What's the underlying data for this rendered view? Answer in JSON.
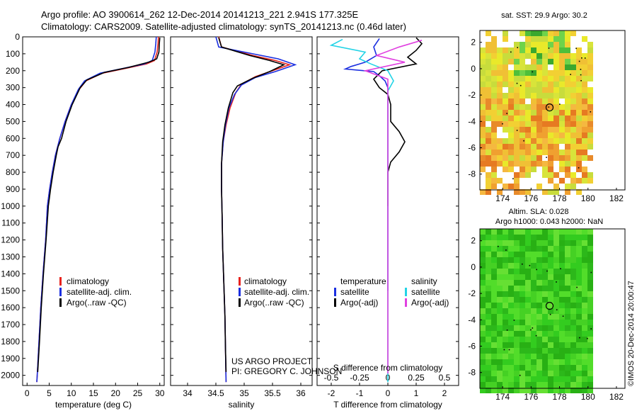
{
  "header": {
    "line1": "Argo profile: AO 3900614_262 12-Dec-2014 20141213_221 2.941S 177.325E",
    "line2": "Climatology: CARS2009. Satellite-adjusted climatology: synTS_20141213.nc (0.46d later)"
  },
  "colors": {
    "climatology": "#e8231e",
    "satellite": "#1b2fe0",
    "argo": "#000000",
    "sat_salinity": "#22d3e6",
    "argo_salinity": "#e040e0"
  },
  "chart_data": [
    {
      "type": "line",
      "name": "temperature-profile",
      "xlabel": "temperature (deg C)",
      "ylabel": "",
      "xlim": [
        -1,
        31
      ],
      "ylim": [
        2060,
        0
      ],
      "xticks": [
        "0",
        "5",
        "10",
        "15",
        "20",
        "25",
        "30"
      ],
      "yticks": [
        "0",
        "100",
        "200",
        "300",
        "400",
        "500",
        "600",
        "700",
        "800",
        "900",
        "1000",
        "1100",
        "1200",
        "1300",
        "1400",
        "1500",
        "1600",
        "1700",
        "1800",
        "1900",
        "2000"
      ],
      "legend": [
        "climatology",
        "satellite-adj. clim.",
        "Argo(..raw -QC)"
      ],
      "series": [
        {
          "name": "climatology",
          "color_key": "climatology",
          "points": [
            [
              29.7,
              0
            ],
            [
              29.6,
              40
            ],
            [
              29.4,
              90
            ],
            [
              28.8,
              140
            ],
            [
              27,
              160
            ],
            [
              22.5,
              185
            ],
            [
              17,
              215
            ],
            [
              13.3,
              260
            ],
            [
              11.8,
              310
            ],
            [
              10,
              400
            ],
            [
              8.6,
              500
            ],
            [
              7.4,
              600
            ],
            [
              6.4,
              700
            ],
            [
              5.7,
              800
            ],
            [
              5.1,
              900
            ],
            [
              4.6,
              1000
            ],
            [
              4.2,
              1200
            ],
            [
              3.6,
              1400
            ],
            [
              3.1,
              1600
            ],
            [
              2.7,
              1800
            ],
            [
              2.3,
              2000
            ],
            [
              2.2,
              2040
            ]
          ]
        },
        {
          "name": "satellite-adj. clim.",
          "color_key": "satellite",
          "points": [
            [
              29.2,
              0
            ],
            [
              29.1,
              40
            ],
            [
              28.9,
              90
            ],
            [
              28.3,
              140
            ],
            [
              26.5,
              160
            ],
            [
              22,
              185
            ],
            [
              16.5,
              215
            ],
            [
              13,
              260
            ],
            [
              11.6,
              310
            ],
            [
              10,
              400
            ],
            [
              8.6,
              500
            ],
            [
              7.4,
              600
            ],
            [
              6.4,
              700
            ],
            [
              5.7,
              800
            ],
            [
              5.1,
              900
            ],
            [
              4.6,
              1000
            ],
            [
              4.2,
              1200
            ],
            [
              3.6,
              1400
            ],
            [
              3.1,
              1600
            ],
            [
              2.7,
              1800
            ],
            [
              2.3,
              2000
            ],
            [
              2.2,
              2040
            ]
          ]
        },
        {
          "name": "Argo(..raw -QC)",
          "color_key": "argo",
          "points": [
            [
              30,
              5
            ],
            [
              29.9,
              40
            ],
            [
              29.8,
              90
            ],
            [
              29.3,
              130
            ],
            [
              27.5,
              150
            ],
            [
              23,
              180
            ],
            [
              17.5,
              210
            ],
            [
              13.5,
              255
            ],
            [
              12,
              300
            ],
            [
              10.2,
              400
            ],
            [
              8.8,
              500
            ],
            [
              7.8,
              600
            ],
            [
              7,
              650
            ],
            [
              6.6,
              700
            ],
            [
              5.9,
              800
            ],
            [
              5.3,
              900
            ],
            [
              4.8,
              1000
            ],
            [
              4.3,
              1200
            ],
            [
              3.7,
              1400
            ],
            [
              3.2,
              1600
            ],
            [
              2.8,
              1800
            ],
            [
              2.4,
              1980
            ]
          ]
        }
      ]
    },
    {
      "type": "line",
      "name": "salinity-profile",
      "xlabel": "salinity",
      "xlim": [
        33.7,
        36.2
      ],
      "ylim": [
        2060,
        0
      ],
      "xticks": [
        "34",
        "34.5",
        "35",
        "35.5",
        "36"
      ],
      "legend": [
        "climatology",
        "satellite-adj. clim.",
        "Argo(..raw -QC)"
      ],
      "series": [
        {
          "name": "climatology",
          "color_key": "climatology",
          "points": [
            [
              34.55,
              0
            ],
            [
              34.6,
              60
            ],
            [
              35.15,
              110
            ],
            [
              35.55,
              140
            ],
            [
              35.8,
              165
            ],
            [
              35.5,
              200
            ],
            [
              35.2,
              235
            ],
            [
              34.95,
              280
            ],
            [
              34.85,
              330
            ],
            [
              34.75,
              420
            ],
            [
              34.68,
              520
            ],
            [
              34.63,
              620
            ],
            [
              34.6,
              750
            ],
            [
              34.6,
              900
            ],
            [
              34.61,
              1050
            ],
            [
              34.62,
              1250
            ],
            [
              34.64,
              1450
            ],
            [
              34.66,
              1650
            ],
            [
              34.67,
              1850
            ],
            [
              34.68,
              2040
            ]
          ]
        },
        {
          "name": "satellite-adj. clim.",
          "color_key": "satellite",
          "points": [
            [
              34.5,
              0
            ],
            [
              34.55,
              60
            ],
            [
              35.15,
              100
            ],
            [
              35.6,
              130
            ],
            [
              35.9,
              165
            ],
            [
              35.55,
              205
            ],
            [
              35.2,
              240
            ],
            [
              34.95,
              285
            ],
            [
              34.83,
              340
            ],
            [
              34.73,
              420
            ],
            [
              34.67,
              520
            ],
            [
              34.63,
              620
            ],
            [
              34.6,
              750
            ],
            [
              34.6,
              900
            ],
            [
              34.61,
              1050
            ],
            [
              34.62,
              1250
            ],
            [
              34.64,
              1450
            ],
            [
              34.66,
              1650
            ],
            [
              34.67,
              1850
            ],
            [
              34.68,
              2040
            ]
          ]
        },
        {
          "name": "Argo(..raw -QC)",
          "color_key": "argo",
          "points": [
            [
              34.55,
              5
            ],
            [
              34.6,
              60
            ],
            [
              35.1,
              110
            ],
            [
              35.45,
              140
            ],
            [
              35.7,
              165
            ],
            [
              35.45,
              205
            ],
            [
              35.15,
              245
            ],
            [
              34.88,
              290
            ],
            [
              34.8,
              330
            ],
            [
              34.72,
              420
            ],
            [
              34.66,
              520
            ],
            [
              34.62,
              620
            ],
            [
              34.6,
              750
            ],
            [
              34.6,
              900
            ],
            [
              34.61,
              1050
            ],
            [
              34.62,
              1250
            ],
            [
              34.64,
              1450
            ],
            [
              34.66,
              1650
            ],
            [
              34.67,
              1850
            ],
            [
              34.68,
              1980
            ]
          ]
        }
      ]
    },
    {
      "type": "line",
      "name": "difference-profile",
      "xlabel": "T difference from climatology",
      "xlabel2": "S difference from climatology",
      "xlim": [
        -2.5,
        2.5
      ],
      "ylim": [
        2060,
        0
      ],
      "xticks": [
        "-2",
        "-1",
        "0",
        "1",
        "2"
      ],
      "xticks_s": [
        "-0.5",
        "-0.25",
        "0",
        "0.25",
        "0.5"
      ],
      "legend": [
        "temperature",
        "satellite",
        "Argo(-adj)",
        "salinity",
        "satellite",
        "Argo(-adj)"
      ],
      "series": [
        {
          "name": "T satellite",
          "color_key": "satellite",
          "points": [
            [
              -0.3,
              10
            ],
            [
              -0.5,
              60
            ],
            [
              -0.4,
              110
            ],
            [
              -0.8,
              150
            ],
            [
              -1.3,
              175
            ],
            [
              -1.5,
              190
            ],
            [
              -0.5,
              205
            ],
            [
              -0.3,
              230
            ],
            [
              -0.1,
              260
            ],
            [
              0,
              300
            ],
            [
              0,
              500
            ],
            [
              0,
              800
            ],
            [
              0,
              1200
            ],
            [
              0,
              1500
            ]
          ]
        },
        {
          "name": "T Argo(-adj)",
          "color_key": "argo",
          "points": [
            [
              1,
              5
            ],
            [
              1.2,
              40
            ],
            [
              1,
              80
            ],
            [
              0.7,
              120
            ],
            [
              1,
              160
            ],
            [
              -0.2,
              200
            ],
            [
              -0.5,
              250
            ],
            [
              -0.3,
              300
            ],
            [
              0,
              340
            ],
            [
              0.1,
              400
            ],
            [
              0.1,
              500
            ],
            [
              0.4,
              560
            ],
            [
              0.6,
              620
            ],
            [
              0.4,
              680
            ],
            [
              0.1,
              740
            ],
            [
              0,
              800
            ],
            [
              0,
              1000
            ]
          ]
        },
        {
          "name": "S satellite",
          "color_key": "sat_salinity",
          "points": [
            [
              -0.4,
              15
            ],
            [
              -0.5,
              50
            ],
            [
              -0.2,
              90
            ],
            [
              -0.25,
              130
            ],
            [
              -0.15,
              160
            ],
            [
              0,
              200
            ],
            [
              0.05,
              260
            ],
            [
              0,
              320
            ],
            [
              0,
              500
            ],
            [
              0,
              800
            ],
            [
              0,
              1200
            ],
            [
              0,
              1600
            ],
            [
              0,
              2040
            ]
          ]
        },
        {
          "name": "S Argo(-adj)",
          "color_key": "argo_salinity",
          "points": [
            [
              0.3,
              20
            ],
            [
              0.1,
              60
            ],
            [
              -0.1,
              110
            ],
            [
              0.15,
              150
            ],
            [
              -0.2,
              200
            ],
            [
              0,
              250
            ],
            [
              0,
              400
            ],
            [
              0,
              800
            ],
            [
              0,
              1500
            ],
            [
              0,
              1990
            ]
          ]
        }
      ]
    },
    {
      "type": "heatmap",
      "name": "sst-map",
      "title": "sat. SST: 29.9 Argo: 30.2",
      "xticks": [
        "174",
        "176",
        "178",
        "180",
        "182"
      ],
      "yticks": [
        "2",
        "0",
        "-2",
        "-4",
        "-6",
        "-8"
      ],
      "xlim": [
        172.4,
        182.6
      ],
      "ylim": [
        -9.2,
        2.9
      ],
      "marker": [
        177.3,
        -2.94
      ]
    },
    {
      "type": "heatmap",
      "name": "sla-map",
      "title": "Altim. SLA: 0.028",
      "subtitle": "Argo h1000: 0.043 h2000: NaN",
      "xticks": [
        "174",
        "176",
        "178",
        "180",
        "182"
      ],
      "yticks": [
        "2",
        "0",
        "-2",
        "-4",
        "-6",
        "-8"
      ],
      "xlim": [
        172.4,
        182.6
      ],
      "ylim": [
        -9.2,
        2.9
      ],
      "marker": [
        177.3,
        -2.94
      ]
    }
  ],
  "annotations": {
    "project_line1": "US ARGO PROJECT",
    "project_line2": "PI: GREGORY C. JOHNSON",
    "footer": "©IMOS 20-Dec-2014 20:00:47"
  }
}
